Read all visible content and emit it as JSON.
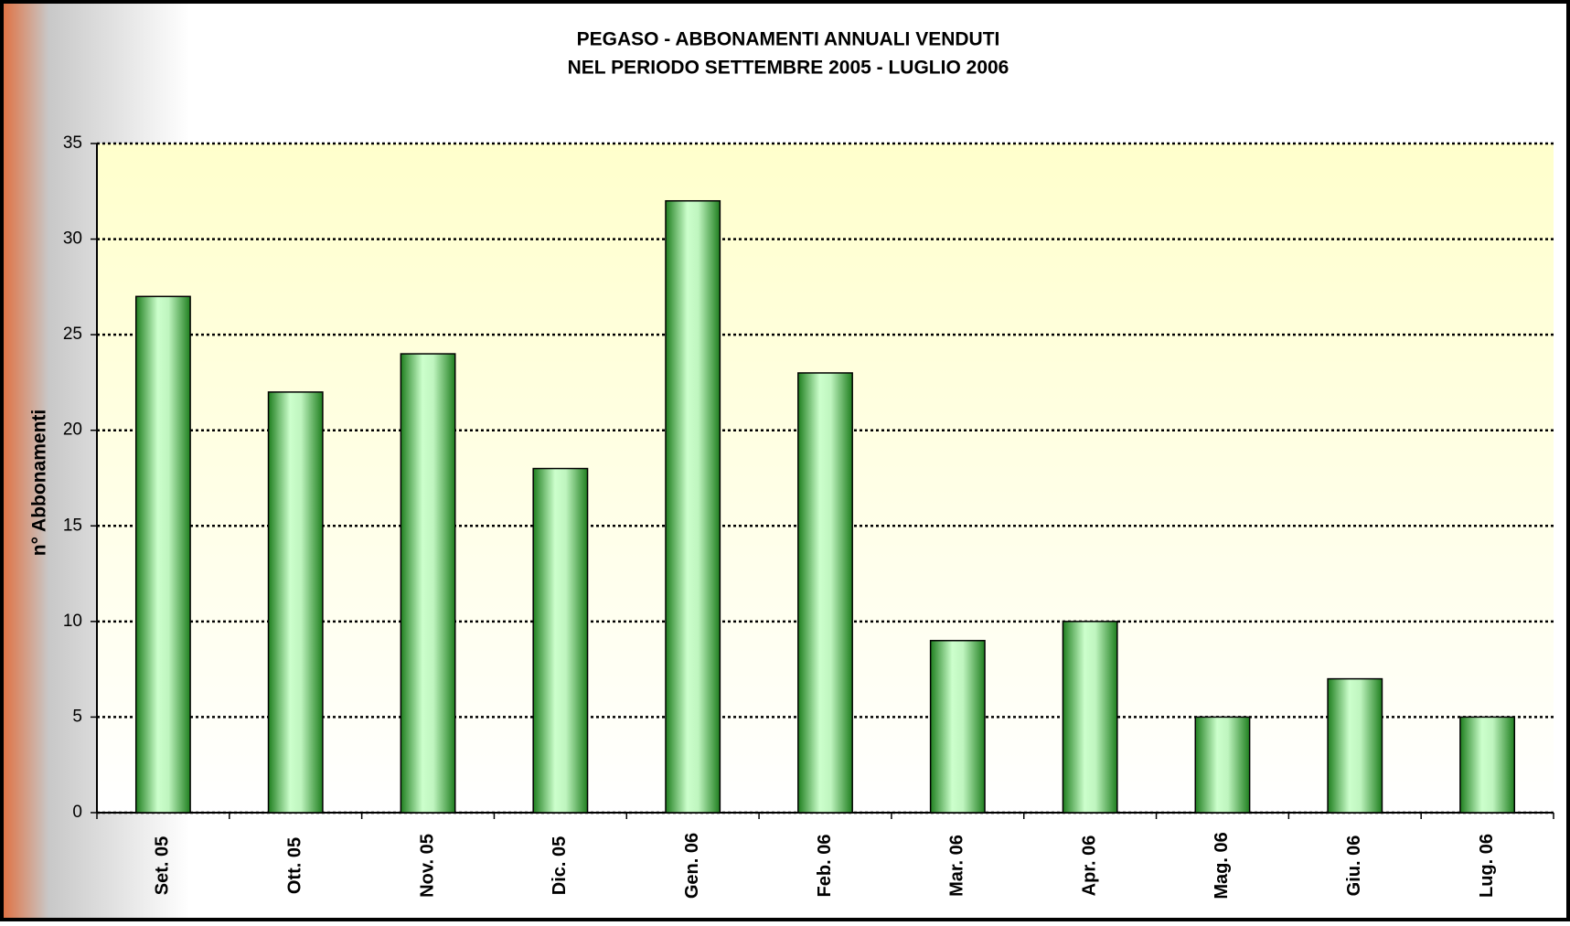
{
  "chart_data": {
    "type": "bar",
    "title": [
      "PEGASO - ABBONAMENTI ANNUALI VENDUTI",
      "NEL PERIODO SETTEMBRE 2005 - LUGLIO 2006"
    ],
    "y_label": "n° Abbonamenti",
    "categories": [
      "Set. 05",
      "Ott. 05",
      "Nov. 05",
      "Dic. 05",
      "Gen. 06",
      "Feb. 06",
      "Mar. 06",
      "Apr. 06",
      "Mag. 06",
      "Giu. 06",
      "Lug. 06"
    ],
    "values": [
      27,
      22,
      24,
      18,
      32,
      23,
      9,
      10,
      5,
      7,
      5
    ],
    "color": "#ccffcc",
    "ylim": [
      0,
      35
    ],
    "yticks": [
      0,
      5,
      10,
      15,
      20,
      25,
      30,
      35
    ],
    "grid": true
  }
}
